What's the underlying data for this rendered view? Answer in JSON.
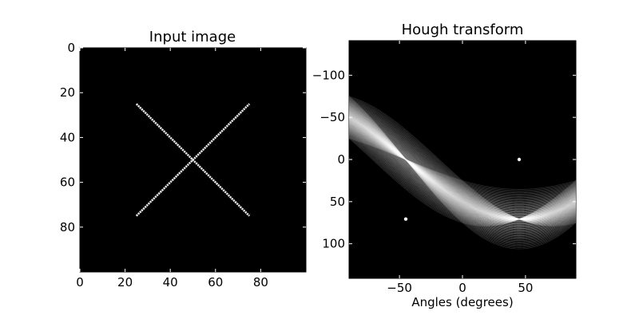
{
  "chart_data": [
    {
      "type": "heatmap",
      "title": "Input image",
      "xlabel": "",
      "ylabel": "",
      "x_ticks": [
        0,
        20,
        40,
        60,
        80
      ],
      "y_ticks": [
        0,
        20,
        40,
        60,
        80
      ],
      "xlim": [
        0,
        100
      ],
      "ylim": [
        0,
        100
      ],
      "y_inverted": true,
      "background_color": "#000000",
      "line_color": "#ffffff",
      "lines": [
        {
          "name": "",
          "x": [
            25,
            75
          ],
          "y": [
            25,
            75
          ]
        },
        {
          "name": "",
          "x": [
            25,
            75
          ],
          "y": [
            75,
            25
          ]
        }
      ],
      "grid": false
    },
    {
      "type": "heatmap",
      "title": "Hough transform",
      "xlabel": "Angles (degrees)",
      "ylabel": "",
      "x_ticks": [
        -50,
        0,
        50
      ],
      "y_ticks": [
        -100,
        -50,
        0,
        50,
        100
      ],
      "xlim": [
        -90,
        90
      ],
      "ylim": [
        -141,
        141
      ],
      "y_inverted": true,
      "background_color": "#000000",
      "curve_color": "#ffffff",
      "curve_center": [
        50,
        50
      ],
      "bright_peaks": [
        {
          "angle": -45,
          "distance": 70.7
        },
        {
          "angle": 45,
          "distance": 0
        }
      ],
      "grid": false
    }
  ]
}
